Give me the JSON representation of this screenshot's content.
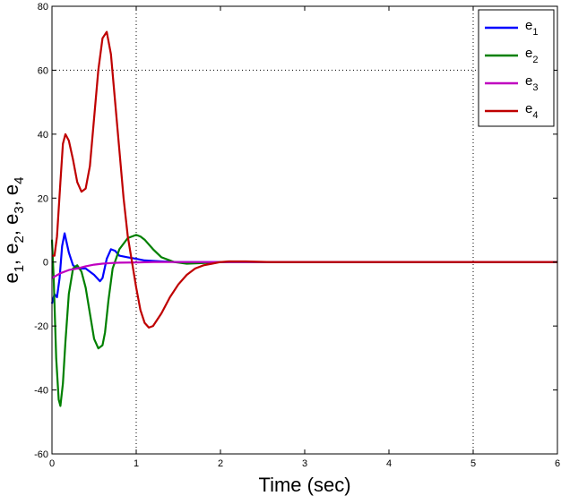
{
  "chart_data": {
    "type": "line",
    "title": "",
    "xlabel": "Time (sec)",
    "ylabel_parts": [
      {
        "base": "e",
        "sub": "1",
        "sep": ", "
      },
      {
        "base": "e",
        "sub": "2",
        "sep": ", "
      },
      {
        "base": "e",
        "sub": "3",
        "sep": ", "
      },
      {
        "base": "e",
        "sub": "4",
        "sep": ""
      }
    ],
    "xlim": [
      0,
      6
    ],
    "ylim": [
      -60,
      80
    ],
    "xticks": [
      "0",
      "1",
      "2",
      "3",
      "4",
      "5",
      "6"
    ],
    "yticks": [
      "-60",
      "-40",
      "-20",
      "0",
      "20",
      "40",
      "60",
      "80"
    ],
    "annotation_lines": {
      "x": [
        1,
        5
      ],
      "y": [
        60
      ]
    },
    "legend_position": "top-right",
    "series": [
      {
        "label_base": "e",
        "label_sub": "1",
        "color": "#0000ff",
        "x": [
          0,
          0.03,
          0.06,
          0.09,
          0.12,
          0.15,
          0.2,
          0.25,
          0.3,
          0.4,
          0.5,
          0.57,
          0.6,
          0.65,
          0.7,
          0.75,
          0.8,
          0.9,
          1.0,
          1.1,
          1.3,
          1.5,
          1.8,
          2.2,
          3,
          6
        ],
        "y": [
          -13,
          -10,
          -11,
          -5,
          5,
          9,
          3,
          -1,
          -2,
          -2,
          -4,
          -6,
          -5,
          1,
          4,
          3.5,
          2,
          1.5,
          1,
          0.5,
          0.2,
          0,
          0,
          0,
          0,
          0
        ]
      },
      {
        "label_base": "e",
        "label_sub": "2",
        "color": "#008000",
        "x": [
          0,
          0.02,
          0.05,
          0.08,
          0.1,
          0.13,
          0.16,
          0.2,
          0.25,
          0.3,
          0.35,
          0.4,
          0.45,
          0.5,
          0.55,
          0.6,
          0.63,
          0.67,
          0.72,
          0.8,
          0.9,
          1.0,
          1.05,
          1.1,
          1.2,
          1.3,
          1.45,
          1.6,
          1.8,
          2.0,
          2.2,
          2.5,
          3,
          6
        ],
        "y": [
          7,
          -5,
          -30,
          -43,
          -45,
          -38,
          -25,
          -10,
          -2,
          -1,
          -3,
          -8,
          -16,
          -24,
          -27,
          -26,
          -22,
          -12,
          -2,
          4,
          7.5,
          8.5,
          8,
          7,
          4,
          1.5,
          0,
          -0.5,
          -0.3,
          0,
          0,
          0,
          0,
          0
        ]
      },
      {
        "label_base": "e",
        "label_sub": "3",
        "color": "#bf00bf",
        "x": [
          0,
          0.1,
          0.2,
          0.3,
          0.4,
          0.5,
          0.6,
          0.7,
          0.8,
          1.0,
          1.2,
          1.5,
          2.0,
          3,
          6
        ],
        "y": [
          -5,
          -3.5,
          -2.5,
          -2,
          -1.3,
          -0.8,
          -0.5,
          -0.3,
          -0.2,
          -0.1,
          0,
          0,
          0,
          0,
          0
        ]
      },
      {
        "label_base": "e",
        "label_sub": "4",
        "color": "#bf0000",
        "x": [
          0,
          0.03,
          0.06,
          0.1,
          0.13,
          0.16,
          0.2,
          0.25,
          0.3,
          0.35,
          0.4,
          0.45,
          0.5,
          0.55,
          0.6,
          0.65,
          0.7,
          0.75,
          0.8,
          0.85,
          0.9,
          0.95,
          1.0,
          1.05,
          1.1,
          1.15,
          1.2,
          1.3,
          1.4,
          1.5,
          1.6,
          1.7,
          1.8,
          1.9,
          2.0,
          2.1,
          2.3,
          2.6,
          3,
          6
        ],
        "y": [
          2,
          2,
          8,
          25,
          37,
          40,
          38,
          32,
          25,
          22,
          23,
          30,
          45,
          60,
          70,
          72,
          65,
          50,
          35,
          20,
          8,
          0,
          -8,
          -15,
          -19,
          -20.5,
          -20,
          -16,
          -11,
          -7,
          -4,
          -2,
          -1,
          -0.5,
          0,
          0.2,
          0.2,
          0,
          0,
          0
        ]
      }
    ]
  }
}
